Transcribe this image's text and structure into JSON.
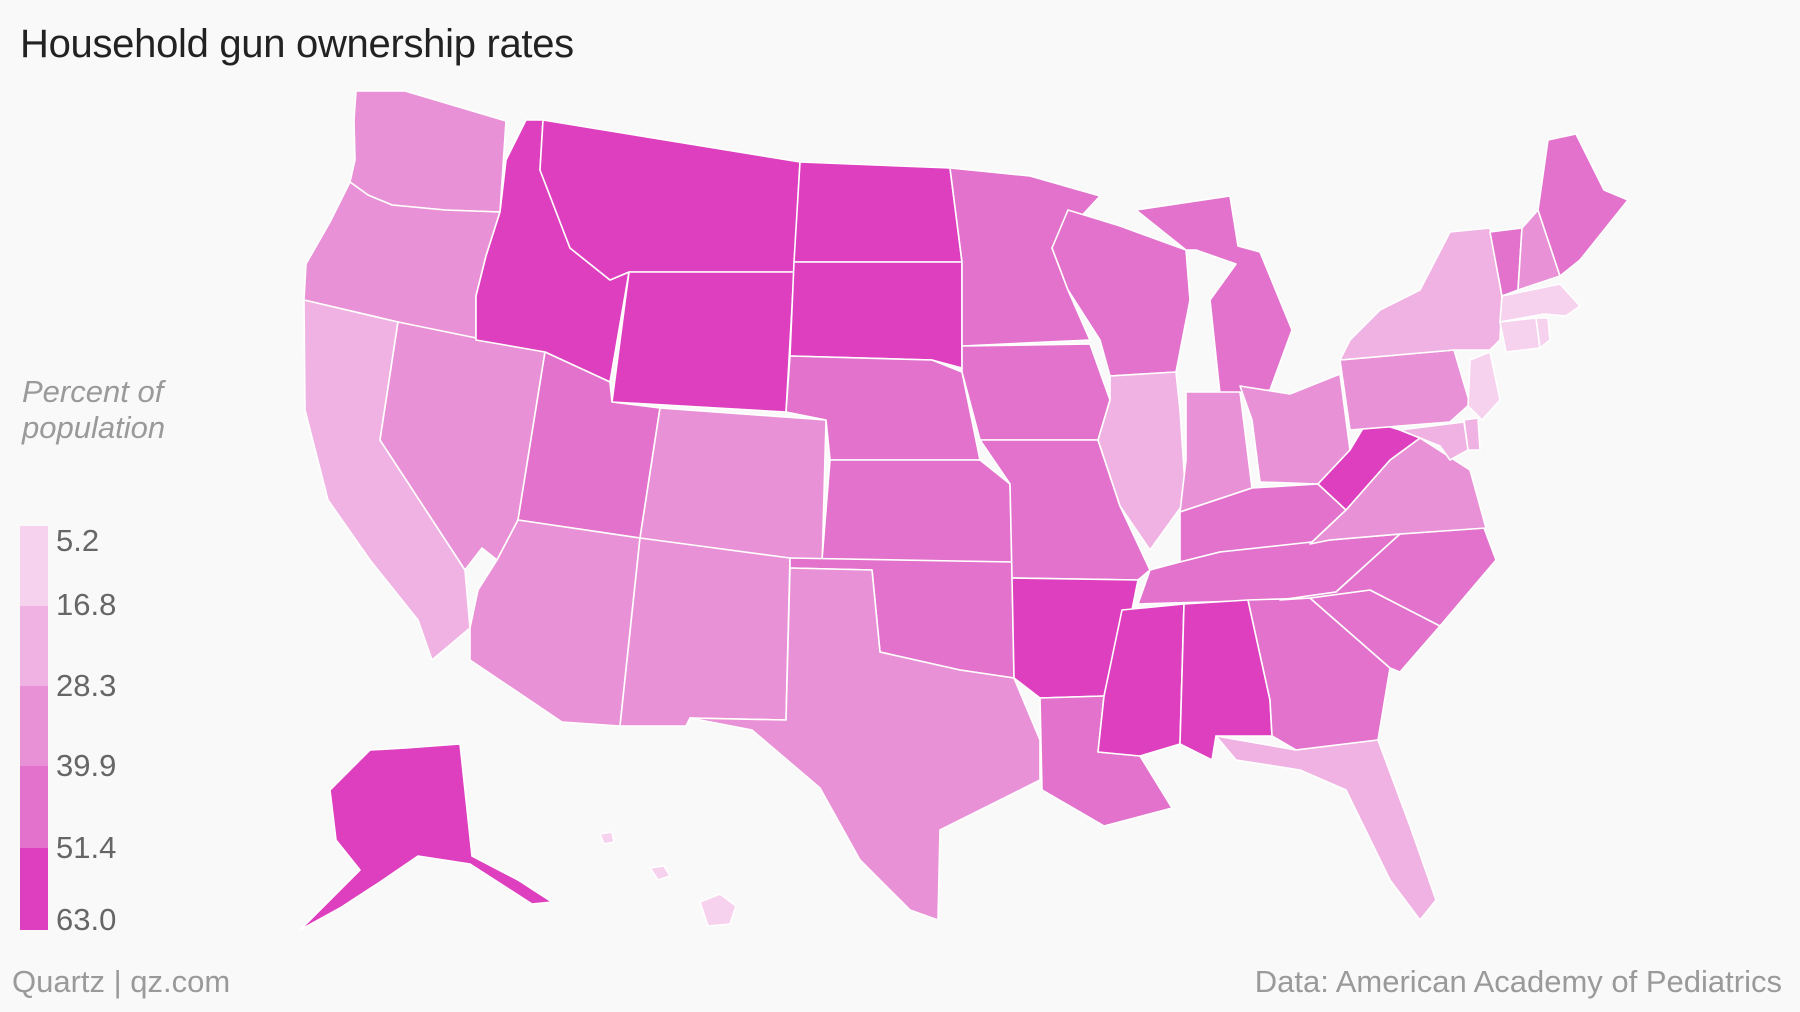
{
  "title": "Household gun ownership rates",
  "legend": {
    "title_line1": "Percent of",
    "title_line2": "population",
    "breaks": [
      "5.2",
      "16.8",
      "28.3",
      "39.9",
      "51.4",
      "63.0"
    ],
    "colors": [
      "#f7d2ee",
      "#f0b2e2",
      "#e991d6",
      "#e272cc",
      "#de3fbe",
      "#e03cba"
    ]
  },
  "footer": {
    "source_left": "Quartz | qz.com",
    "source_right": "Data: American Academy of Pediatrics"
  },
  "states": [
    {
      "id": "WA",
      "bin": 2
    },
    {
      "id": "OR",
      "bin": 2
    },
    {
      "id": "CA",
      "bin": 1
    },
    {
      "id": "NV",
      "bin": 2
    },
    {
      "id": "ID",
      "bin": 4
    },
    {
      "id": "MT",
      "bin": 4
    },
    {
      "id": "WY",
      "bin": 4
    },
    {
      "id": "UT",
      "bin": 3
    },
    {
      "id": "AZ",
      "bin": 2
    },
    {
      "id": "CO",
      "bin": 2
    },
    {
      "id": "NM",
      "bin": 2
    },
    {
      "id": "ND",
      "bin": 4
    },
    {
      "id": "SD",
      "bin": 4
    },
    {
      "id": "NE",
      "bin": 3
    },
    {
      "id": "KS",
      "bin": 3
    },
    {
      "id": "OK",
      "bin": 3
    },
    {
      "id": "TX",
      "bin": 2
    },
    {
      "id": "MN",
      "bin": 3
    },
    {
      "id": "IA",
      "bin": 3
    },
    {
      "id": "MO",
      "bin": 3
    },
    {
      "id": "AR",
      "bin": 4
    },
    {
      "id": "LA",
      "bin": 3
    },
    {
      "id": "WI",
      "bin": 3
    },
    {
      "id": "IL",
      "bin": 1
    },
    {
      "id": "MI",
      "bin": 3
    },
    {
      "id": "IN",
      "bin": 2
    },
    {
      "id": "OH",
      "bin": 2
    },
    {
      "id": "KY",
      "bin": 3
    },
    {
      "id": "TN",
      "bin": 3
    },
    {
      "id": "MS",
      "bin": 4
    },
    {
      "id": "AL",
      "bin": 4
    },
    {
      "id": "GA",
      "bin": 3
    },
    {
      "id": "FL",
      "bin": 1
    },
    {
      "id": "SC",
      "bin": 3
    },
    {
      "id": "NC",
      "bin": 3
    },
    {
      "id": "VA",
      "bin": 2
    },
    {
      "id": "WV",
      "bin": 4
    },
    {
      "id": "PA",
      "bin": 2
    },
    {
      "id": "NY",
      "bin": 1
    },
    {
      "id": "VT",
      "bin": 3
    },
    {
      "id": "NH",
      "bin": 2
    },
    {
      "id": "ME",
      "bin": 3
    },
    {
      "id": "MA",
      "bin": 0
    },
    {
      "id": "CT",
      "bin": 0
    },
    {
      "id": "RI",
      "bin": 0
    },
    {
      "id": "NJ",
      "bin": 0
    },
    {
      "id": "DE",
      "bin": 1
    },
    {
      "id": "MD",
      "bin": 1
    },
    {
      "id": "AK",
      "bin": 4
    },
    {
      "id": "HI",
      "bin": 0
    }
  ]
}
